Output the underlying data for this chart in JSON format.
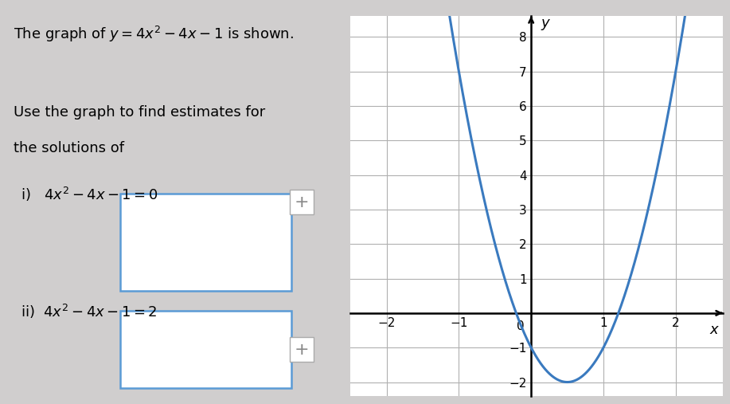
{
  "text_line1": "The graph of $y = 4x^2 - 4x - 1$ is shown.",
  "text_line2": "Use the graph to find estimates for",
  "text_line3": "the solutions of",
  "eq_i": "i)   $4x^2 - 4x - 1 = 0$",
  "eq_ii": "ii)  $4x^2 - 4x - 1 = 2$",
  "curve_color": "#3a7abf",
  "curve_linewidth": 2.2,
  "x_min": -2.5,
  "x_max": 2.65,
  "y_min": -2.4,
  "y_max": 8.6,
  "x_ticks": [
    -2,
    -1,
    0,
    1,
    2
  ],
  "y_ticks": [
    -2,
    -1,
    0,
    1,
    2,
    3,
    4,
    5,
    6,
    7,
    8
  ],
  "xlabel": "$x$",
  "ylabel": "$y$",
  "background_color": "#d0cece",
  "plot_bg_color": "#ffffff",
  "box_color": "#5b9bd5",
  "grid_color": "#b0b0b0",
  "text_fontsize": 13,
  "tick_fontsize": 11
}
